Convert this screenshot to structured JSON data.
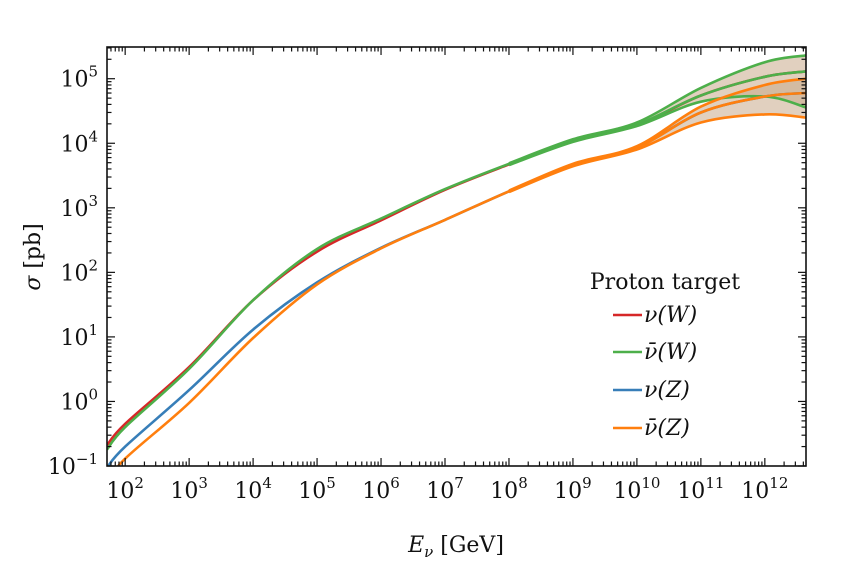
{
  "chart_data": {
    "type": "line",
    "title": "",
    "xlabel": "E_ν [GeV]",
    "ylabel": "σ [pb]",
    "xscale": "log",
    "yscale": "log",
    "xlim": [
      52,
      4400000000000.0
    ],
    "ylim": [
      0.1,
      310000.0
    ],
    "xticks": [
      100.0,
      1000.0,
      10000.0,
      100000.0,
      1000000.0,
      10000000.0,
      100000000.0,
      1000000000.0,
      10000000000.0,
      100000000000.0,
      1000000000000.0
    ],
    "xtick_labels": [
      "10^2",
      "10^3",
      "10^4",
      "10^5",
      "10^6",
      "10^7",
      "10^8",
      "10^9",
      "10^10",
      "10^11",
      "10^12"
    ],
    "yticks": [
      0.1,
      1.0,
      10.0,
      100.0,
      1000.0,
      10000.0,
      100000.0
    ],
    "ytick_labels": [
      "10^-1",
      "10^0",
      "10^1",
      "10^2",
      "10^3",
      "10^4",
      "10^5"
    ],
    "grid": false,
    "legend": {
      "title": "Proton target",
      "position": "lower right",
      "entries": [
        "ν(W)",
        "ν̄(W)",
        "ν(Z)",
        "ν̄(Z)"
      ]
    },
    "x": [
      52,
      100.0,
      1000.0,
      10000.0,
      100000.0,
      1000000.0,
      10000000.0,
      100000000.0,
      1000000000.0,
      10000000000.0,
      100000000000.0,
      1000000000000.0,
      4400000000000.0
    ],
    "series": [
      {
        "name": "ν(W)",
        "color": "#d62728",
        "values": [
          0.21,
          0.45,
          3.4,
          37,
          210,
          640,
          1900,
          4700,
          11000,
          19000,
          55000,
          107000,
          130000
        ]
      },
      {
        "name": "ν̄(W)",
        "color": "#4daf4a",
        "values": [
          0.18,
          0.4,
          3.2,
          37,
          230,
          680,
          1950,
          4800,
          11000,
          19500,
          55000,
          107000,
          130000
        ],
        "band_upper": [
          null,
          null,
          null,
          null,
          null,
          null,
          null,
          4900,
          11500,
          21000,
          72000,
          180000,
          230000
        ],
        "band_lower": [
          null,
          null,
          null,
          null,
          null,
          null,
          null,
          4600,
          10500,
          18500,
          44000,
          53000,
          36000
        ]
      },
      {
        "name": "ν(Z)",
        "color": "#377eb8",
        "values": [
          0.095,
          0.2,
          1.5,
          13,
          70,
          240,
          650,
          1800,
          4600,
          8600,
          30000,
          53000,
          60000
        ]
      },
      {
        "name": "ν̄(Z)",
        "color": "#ff7f0e",
        "values": [
          0.055,
          0.13,
          0.95,
          9.6,
          65,
          235,
          650,
          1800,
          4600,
          8500,
          30000,
          53000,
          60000
        ],
        "band_upper": [
          null,
          null,
          null,
          null,
          null,
          null,
          null,
          1850,
          4800,
          9000,
          37000,
          80000,
          100000
        ],
        "band_lower": [
          null,
          null,
          null,
          null,
          null,
          null,
          null,
          1750,
          4400,
          8000,
          21000,
          28000,
          25000
        ]
      }
    ],
    "band_fill_color": "#c8a98a"
  },
  "labels": {
    "xlabel_main": "E",
    "xlabel_sub": "ν",
    "xlabel_unit": " [GeV]",
    "ylabel_symbol": "σ",
    "ylabel_unit": " [pb]",
    "legend_title": "Proton target",
    "legend_entries": [
      "ν(W)",
      "ν̄(W)",
      "ν(Z)",
      "ν̄(Z)"
    ]
  }
}
